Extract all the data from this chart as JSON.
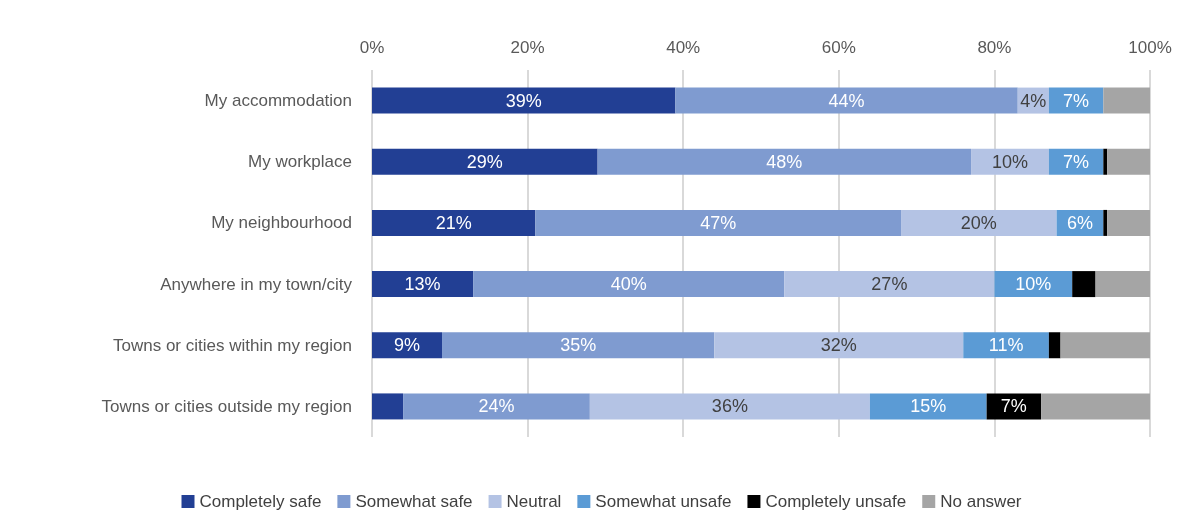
{
  "chart_data": {
    "type": "bar",
    "orientation": "horizontal",
    "stacked": true,
    "categories": [
      "My accommodation",
      "My workplace",
      "My neighbourhood",
      "Anywhere in my town/city",
      "Towns or cities within my region",
      "Towns or cities outside my region"
    ],
    "series": [
      {
        "name": "Completely safe",
        "color": "#223f94",
        "values": [
          39,
          29,
          21,
          13,
          9,
          4
        ],
        "value_labels": [
          "39%",
          "29%",
          "21%",
          "13%",
          "9%",
          null
        ]
      },
      {
        "name": "Somewhat safe",
        "color": "#7f9bd0",
        "values": [
          44,
          48,
          47,
          40,
          35,
          24
        ],
        "value_labels": [
          "44%",
          "48%",
          "47%",
          "40%",
          "35%",
          "24%"
        ]
      },
      {
        "name": "Neutral",
        "color": "#b4c3e4",
        "values": [
          4,
          10,
          20,
          27,
          32,
          36
        ],
        "value_labels": [
          "4%",
          "10%",
          "20%",
          "27%",
          "32%",
          "36%"
        ]
      },
      {
        "name": "Somewhat unsafe",
        "color": "#5b9bd5",
        "values": [
          7,
          7,
          6,
          10,
          11,
          15
        ],
        "value_labels": [
          "7%",
          "7%",
          "6%",
          "10%",
          "11%",
          "15%"
        ]
      },
      {
        "name": "Completely unsafe",
        "color": "#000000",
        "values": [
          0,
          0.5,
          0.5,
          3,
          1.5,
          7
        ],
        "value_labels": [
          null,
          null,
          null,
          null,
          null,
          "7%"
        ]
      },
      {
        "name": "No answer",
        "color": "#a5a5a5",
        "values": [
          6,
          5.5,
          5.5,
          7,
          11.5,
          14
        ],
        "value_labels": [
          null,
          null,
          null,
          null,
          null,
          null
        ]
      }
    ],
    "xlim": [
      0,
      100
    ],
    "xticks": [
      {
        "value": 0,
        "label": "0%"
      },
      {
        "value": 20,
        "label": "20%"
      },
      {
        "value": 40,
        "label": "40%"
      },
      {
        "value": 60,
        "label": "60%"
      },
      {
        "value": 80,
        "label": "80%"
      },
      {
        "value": 100,
        "label": "100%"
      }
    ],
    "grid": "x",
    "legend": "bottom"
  }
}
